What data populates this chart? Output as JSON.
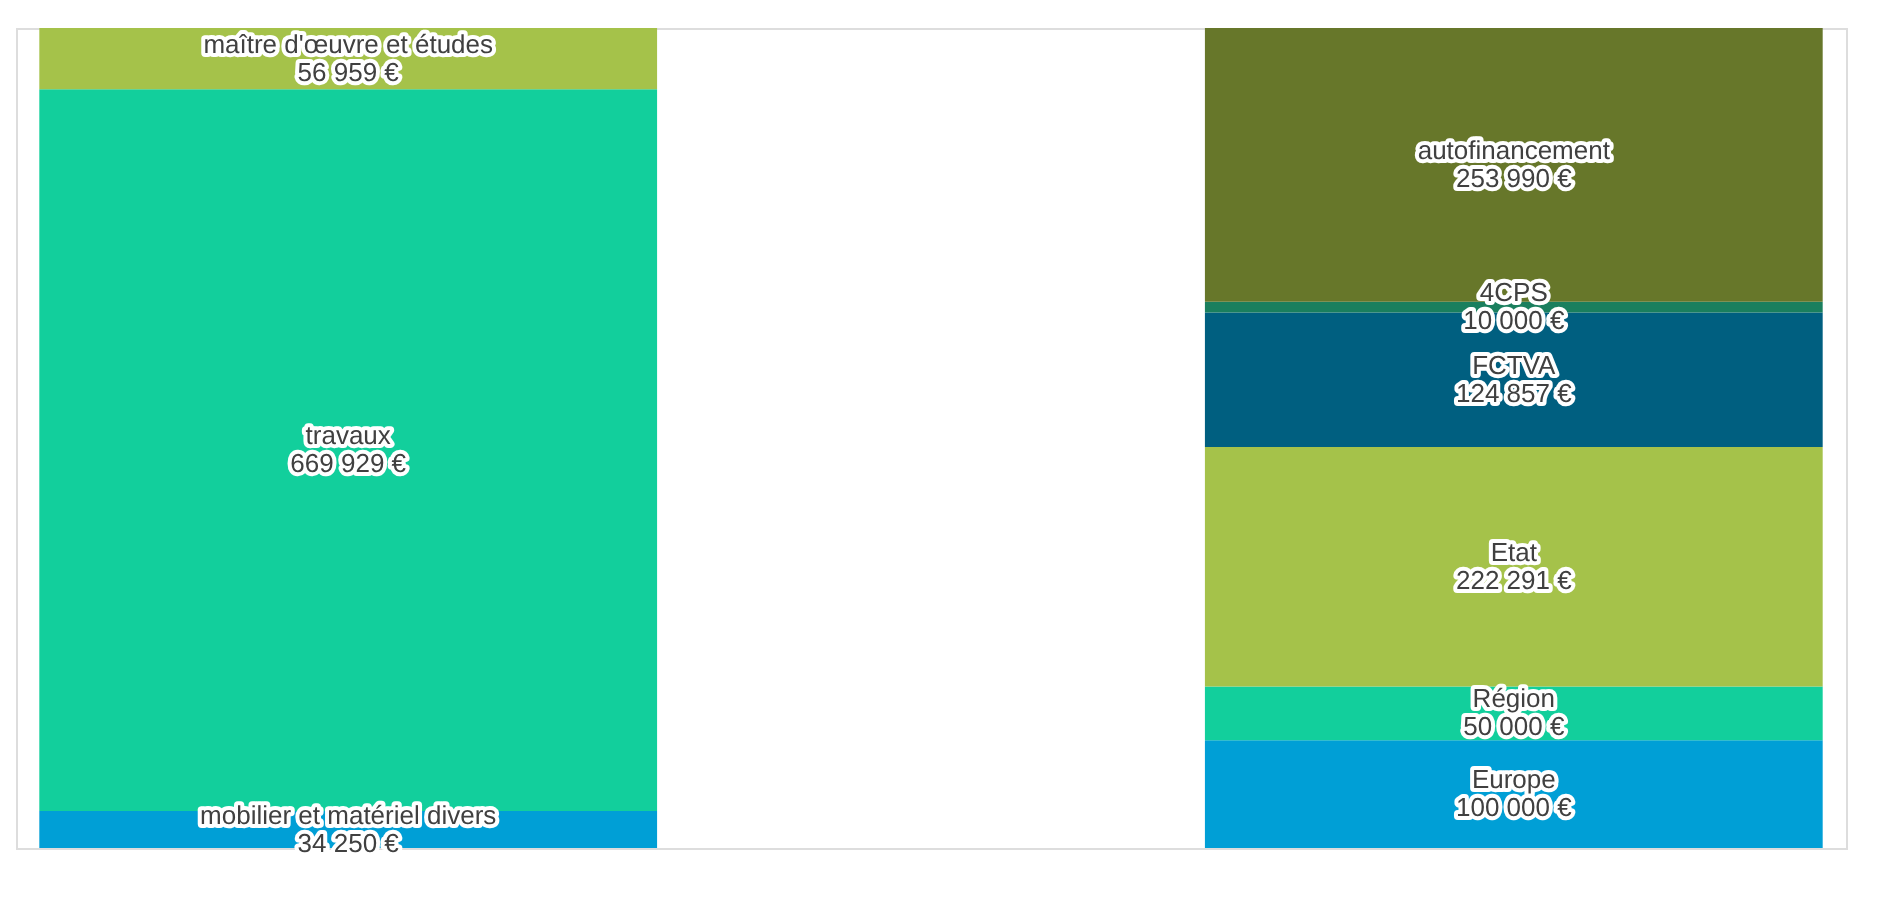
{
  "chart_data": {
    "type": "bar",
    "stacked": true,
    "categories": [
      null,
      null
    ],
    "legend": false,
    "tick_labels": false,
    "series": [
      {
        "name": "mobilier et matériel divers",
        "color": "#009fd6",
        "values": [
          34250,
          null
        ],
        "value_labels": [
          "34 250 €",
          null
        ]
      },
      {
        "name": "travaux",
        "color": "#12cf9c",
        "values": [
          669929,
          null
        ],
        "value_labels": [
          "669 929 €",
          null
        ]
      },
      {
        "name": "maître d'œuvre et études",
        "color": "#a5c24a",
        "values": [
          56959,
          null
        ],
        "value_labels": [
          "56 959 €",
          null
        ]
      },
      {
        "name": "Europe",
        "color": "#009fd6",
        "values": [
          null,
          100000
        ],
        "value_labels": [
          null,
          "100 000 €"
        ]
      },
      {
        "name": "Région",
        "color": "#12cf9c",
        "values": [
          null,
          50000
        ],
        "value_labels": [
          null,
          "50 000 €"
        ]
      },
      {
        "name": "Etat",
        "color": "#a5c24a",
        "values": [
          null,
          222291
        ],
        "value_labels": [
          null,
          "222 291 €"
        ]
      },
      {
        "name": "FCTVA",
        "color": "#005f80",
        "values": [
          null,
          124857
        ],
        "value_labels": [
          null,
          "124 857 €"
        ]
      },
      {
        "name": "4CPS",
        "color": "#1a7f5e",
        "values": [
          null,
          10000
        ],
        "value_labels": [
          null,
          "10 000 €"
        ]
      },
      {
        "name": "autofinancement",
        "color": "#67772a",
        "values": [
          null,
          253990
        ],
        "value_labels": [
          null,
          "253 990 €"
        ]
      }
    ]
  }
}
